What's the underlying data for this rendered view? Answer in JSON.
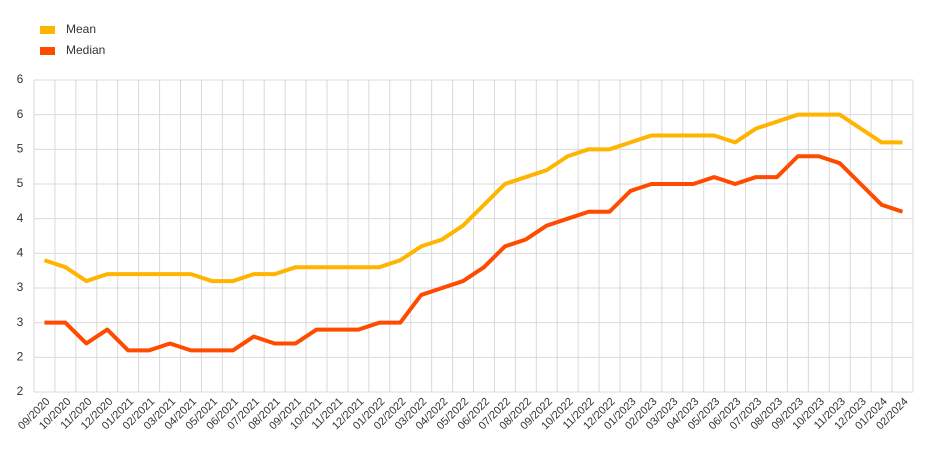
{
  "chart_data": {
    "type": "line",
    "categories": [
      "09/2020",
      "10/2020",
      "11/2020",
      "12/2020",
      "01/2021",
      "02/2021",
      "03/2021",
      "04/2021",
      "05/2021",
      "06/2021",
      "07/2021",
      "08/2021",
      "09/2021",
      "10/2021",
      "11/2021",
      "12/2021",
      "01/2022",
      "02/2022",
      "03/2022",
      "04/2022",
      "05/2022",
      "06/2022",
      "07/2022",
      "08/2022",
      "09/2022",
      "10/2022",
      "11/2022",
      "12/2022",
      "01/2023",
      "02/2023",
      "03/2023",
      "04/2023",
      "05/2023",
      "06/2023",
      "07/2023",
      "08/2023",
      "09/2023",
      "10/2023",
      "11/2023",
      "12/2023",
      "01/2024",
      "02/2024"
    ],
    "series": [
      {
        "name": "Mean",
        "color": "#ffb400",
        "values": [
          3.4,
          3.3,
          3.1,
          3.2,
          3.2,
          3.2,
          3.2,
          3.2,
          3.1,
          3.1,
          3.2,
          3.2,
          3.3,
          3.3,
          3.3,
          3.3,
          3.3,
          3.4,
          3.6,
          3.7,
          3.9,
          4.2,
          4.5,
          4.6,
          4.7,
          4.9,
          5.0,
          5.0,
          5.1,
          5.2,
          5.2,
          5.2,
          5.2,
          5.1,
          5.3,
          5.4,
          5.5,
          5.5,
          5.5,
          5.3,
          5.1,
          5.1
        ]
      },
      {
        "name": "Median",
        "color": "#ff4b00",
        "values": [
          2.5,
          2.5,
          2.2,
          2.4,
          2.1,
          2.1,
          2.2,
          2.1,
          2.1,
          2.1,
          2.3,
          2.2,
          2.2,
          2.4,
          2.4,
          2.4,
          2.5,
          2.5,
          2.9,
          3.0,
          3.1,
          3.3,
          3.6,
          3.7,
          3.9,
          4.0,
          4.1,
          4.1,
          4.4,
          4.5,
          4.5,
          4.5,
          4.6,
          4.5,
          4.6,
          4.6,
          4.9,
          4.9,
          4.8,
          4.5,
          4.2,
          4.1
        ]
      }
    ],
    "ylim": [
      1.5,
      6
    ],
    "yticks": [
      {
        "value": 1.5,
        "label": "2"
      },
      2,
      {
        "value": 2.5,
        "label": "3"
      },
      3,
      {
        "value": 3.5,
        "label": "4"
      },
      4,
      {
        "value": 4.5,
        "label": "5"
      },
      5,
      {
        "value": 5.5,
        "label": "6"
      },
      6
    ],
    "grid": true,
    "legend": "top-left"
  }
}
